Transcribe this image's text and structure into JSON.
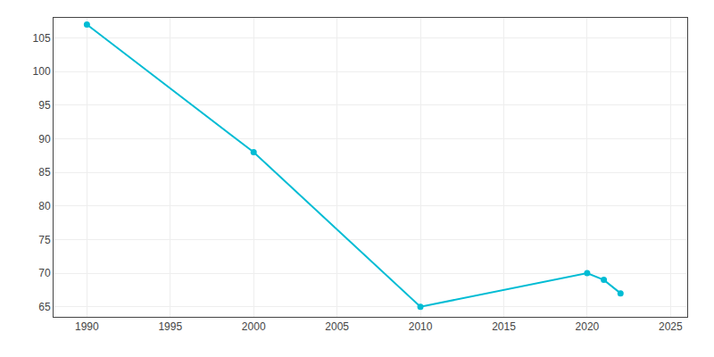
{
  "chart_data": {
    "type": "line",
    "x": [
      1990,
      2000,
      2010,
      2020,
      2021,
      2022
    ],
    "values": [
      107,
      88,
      65,
      70,
      69,
      67
    ],
    "color": "#00BCD4",
    "marker": "circle",
    "xlim": [
      1988,
      2026
    ],
    "ylim": [
      63.5,
      108
    ],
    "xticks": [
      1990,
      1995,
      2000,
      2005,
      2010,
      2015,
      2020,
      2025
    ],
    "yticks": [
      65,
      70,
      75,
      80,
      85,
      90,
      95,
      100,
      105
    ],
    "grid": true
  }
}
